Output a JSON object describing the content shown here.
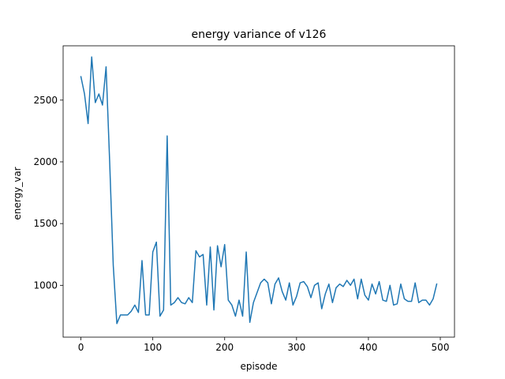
{
  "chart_data": {
    "type": "line",
    "title": "energy variance of v126",
    "xlabel": "episode",
    "ylabel": "energy_var",
    "xlim": [
      -24.75,
      519.75
    ],
    "ylim": [
      580,
      2940
    ],
    "xticks": [
      0,
      100,
      200,
      300,
      400,
      500
    ],
    "yticks": [
      1000,
      1500,
      2000,
      2500
    ],
    "grid": false,
    "line_color": "#1f77b4",
    "series": [
      {
        "x": [
          0,
          5,
          10,
          15,
          20,
          25,
          30,
          35,
          40,
          45,
          50,
          55,
          60,
          65,
          70,
          75,
          80,
          85,
          90,
          95,
          100,
          105,
          110,
          115,
          120,
          125,
          130,
          135,
          140,
          145,
          150,
          155,
          160,
          165,
          170,
          175,
          180,
          185,
          190,
          195,
          200,
          205,
          210,
          215,
          220,
          225,
          230,
          235,
          240,
          245,
          250,
          255,
          260,
          265,
          270,
          275,
          280,
          285,
          290,
          295,
          300,
          305,
          310,
          315,
          320,
          325,
          330,
          335,
          340,
          345,
          350,
          355,
          360,
          365,
          370,
          375,
          380,
          385,
          390,
          395,
          400,
          405,
          410,
          415,
          420,
          425,
          430,
          435,
          440,
          445,
          450,
          455,
          460,
          465,
          470,
          475,
          480,
          485,
          490,
          495
        ],
        "values": [
          2690,
          2550,
          2310,
          2850,
          2480,
          2550,
          2460,
          2770,
          2000,
          1160,
          690,
          760,
          760,
          760,
          790,
          840,
          780,
          1200,
          760,
          760,
          1270,
          1350,
          750,
          800,
          2210,
          840,
          860,
          900,
          860,
          850,
          900,
          860,
          1280,
          1230,
          1250,
          840,
          1310,
          800,
          1320,
          1150,
          1330,
          880,
          840,
          750,
          880,
          750,
          1270,
          700,
          860,
          940,
          1020,
          1050,
          1020,
          850,
          1010,
          1060,
          950,
          880,
          1020,
          840,
          910,
          1020,
          1030,
          990,
          900,
          1000,
          1020,
          810,
          930,
          1010,
          860,
          980,
          1010,
          990,
          1040,
          1000,
          1050,
          890,
          1050,
          920,
          880,
          1010,
          930,
          1030,
          880,
          870,
          1000,
          840,
          850,
          1010,
          890,
          870,
          870,
          1020,
          860,
          880,
          880,
          840,
          890,
          1010
        ]
      }
    ]
  }
}
